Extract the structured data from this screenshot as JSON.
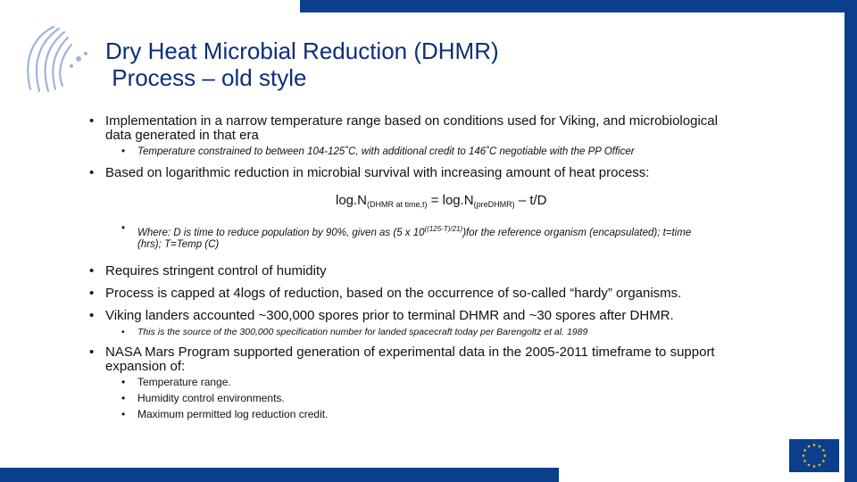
{
  "slide": {
    "title_line1": "Dry Heat Microbial Reduction (DHMR)",
    "title_line2": " Process – old style",
    "bullet_char": "•",
    "b1_line1": "Implementation in a narrow temperature range based on conditions used for Viking, and microbiological",
    "b1_line2": "data generated in that era",
    "b1_sub": "Temperature constrained to between 104-125˚C, with additional credit to 146˚C negotiable with the PP Officer",
    "b2": "Based on logarithmic reduction in microbial survival with increasing amount of heat process:",
    "formula": {
      "part1": "log.N",
      "sub1": "(DHMR at time,t)",
      "part2": " = log.N",
      "sub2": "(preDHMR)",
      "part3": " – t/D"
    },
    "where": {
      "line1_pre": "Where: D is time to reduce population by 90%, given as (5 x 10",
      "line1_sup": "((125-T)/21)",
      "line1_post": ")for the reference organism (encapsulated); t=time",
      "line2": "(hrs); T=Temp (C)"
    },
    "b3": "Requires stringent control of humidity",
    "b4": "Process is capped at 4logs of reduction, based on the occurrence of so-called “hardy” organisms.",
    "b5": "Viking landers accounted ~300,000 spores prior to terminal DHMR and ~30 spores after DHMR.",
    "b5_sub": "This is the source of the 300,000 specification number for landed spacecraft today per Barengoltz et al. 1989",
    "b6_line1": "NASA Mars Program supported generation of experimental data in the 2005-2011 timeframe to support",
    "b6_line2": "expansion of:",
    "b6_subs": [
      "Temperature range.",
      "Humidity control environments.",
      "Maximum permitted log reduction credit."
    ]
  },
  "colors": {
    "brand_blue": "#0b3f8c",
    "title_blue": "#0b2f7a",
    "eu_star": "#ffcc00"
  },
  "icons": {
    "logo": "esa-swirl-logo-icon",
    "flag": "eu-flag-icon"
  }
}
